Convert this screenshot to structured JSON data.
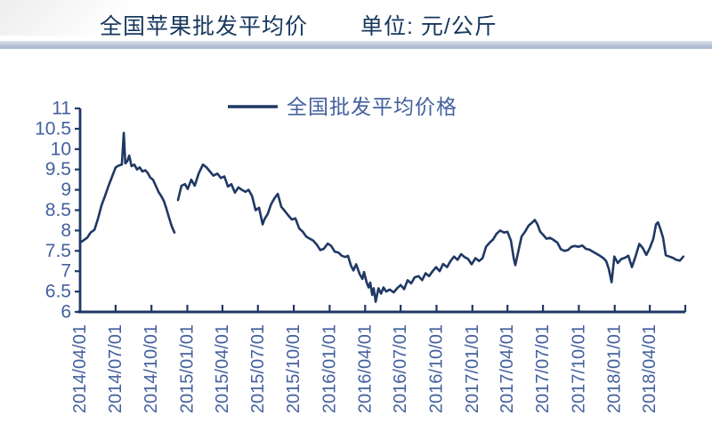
{
  "header": {
    "title": "全国苹果批发平均价",
    "unit": "单位: 元/公斤"
  },
  "chart_data": {
    "type": "line",
    "title": "全国苹果批发平均价",
    "unit_label": "单位: 元/公斤",
    "legend": [
      {
        "label": "全国批发平均价格",
        "position": "top-center"
      }
    ],
    "grid": false,
    "ylim": [
      6,
      11
    ],
    "y_ticks": [
      {
        "v": 6,
        "label": "6"
      },
      {
        "v": 6.5,
        "label": "6.5"
      },
      {
        "v": 7,
        "label": "7"
      },
      {
        "v": 7.5,
        "label": "7.5"
      },
      {
        "v": 8,
        "label": "8"
      },
      {
        "v": 8.5,
        "label": "8.5"
      },
      {
        "v": 9,
        "label": "9"
      },
      {
        "v": 9.5,
        "label": "9.5"
      },
      {
        "v": 10,
        "label": "10"
      },
      {
        "v": 10.5,
        "label": "10.5"
      },
      {
        "v": 11,
        "label": "11"
      }
    ],
    "x_domain": [
      "2014-04-01",
      "2018-07-01"
    ],
    "x_ticks": [
      "2014-07-01",
      "2014-10-01",
      "2015-01-01",
      "2015-04-01",
      "2015-07-01",
      "2015-10-01",
      "2016-01-01",
      "2016-04-01",
      "2016-07-01",
      "2016-10-01",
      "2017-01-01",
      "2017-04-01",
      "2017-07-01",
      "2017-10-01",
      "2018-01-01",
      "2018-04-01",
      "2018-07-01"
    ],
    "x_labels": [
      {
        "date": "2014-04-01",
        "label": "2014/04/01"
      },
      {
        "date": "2014-07-01",
        "label": "2014/07/01"
      },
      {
        "date": "2014-10-01",
        "label": "2014/10/01"
      },
      {
        "date": "2015-01-01",
        "label": "2015/01/01"
      },
      {
        "date": "2015-04-01",
        "label": "2015/04/01"
      },
      {
        "date": "2015-07-01",
        "label": "2015/07/01"
      },
      {
        "date": "2015-10-01",
        "label": "2015/10/01"
      },
      {
        "date": "2016-01-01",
        "label": "2016/01/01"
      },
      {
        "date": "2016-04-01",
        "label": "2016/04/01"
      },
      {
        "date": "2016-07-01",
        "label": "2016/07/01"
      },
      {
        "date": "2016-10-01",
        "label": "2016/10/01"
      },
      {
        "date": "2017-01-01",
        "label": "2017/01/01"
      },
      {
        "date": "2017-04-01",
        "label": "2017/04/01"
      },
      {
        "date": "2017-07-01",
        "label": "2017/07/01"
      },
      {
        "date": "2017-10-01",
        "label": "2017/10/01"
      },
      {
        "date": "2018-01-01",
        "label": "2018/01/01"
      },
      {
        "date": "2018-04-01",
        "label": "2018/04/01"
      }
    ],
    "colors": {
      "line": "#1F3864",
      "axis": "#1F3864",
      "tick_label": "#44619D",
      "title": "#17375E",
      "legend_text": "#44619D",
      "divider_top": "#dce2ec",
      "divider_bottom": "#aebbd2"
    },
    "series": [
      {
        "name": "全国批发平均价格",
        "color": "#1F3864",
        "segments": [
          [
            [
              "2014-04-01",
              7.7
            ],
            [
              "2014-04-10",
              7.76
            ],
            [
              "2014-04-19",
              7.82
            ],
            [
              "2014-04-28",
              7.95
            ],
            [
              "2014-05-08",
              8.02
            ],
            [
              "2014-05-17",
              8.3
            ],
            [
              "2014-05-26",
              8.62
            ],
            [
              "2014-06-04",
              8.85
            ],
            [
              "2014-06-13",
              9.1
            ],
            [
              "2014-06-22",
              9.32
            ],
            [
              "2014-07-01",
              9.55
            ],
            [
              "2014-07-10",
              9.6
            ],
            [
              "2014-07-17",
              9.62
            ],
            [
              "2014-07-22",
              10.4
            ],
            [
              "2014-07-26",
              9.65
            ],
            [
              "2014-07-31",
              9.7
            ],
            [
              "2014-08-05",
              9.84
            ],
            [
              "2014-08-11",
              9.58
            ],
            [
              "2014-08-18",
              9.62
            ],
            [
              "2014-08-25",
              9.5
            ],
            [
              "2014-09-01",
              9.55
            ],
            [
              "2014-09-08",
              9.45
            ],
            [
              "2014-09-15",
              9.48
            ],
            [
              "2014-09-21",
              9.42
            ],
            [
              "2014-09-28",
              9.3
            ],
            [
              "2014-10-05",
              9.25
            ],
            [
              "2014-10-12",
              9.1
            ],
            [
              "2014-10-19",
              8.95
            ],
            [
              "2014-10-26",
              8.85
            ],
            [
              "2014-11-02",
              8.72
            ],
            [
              "2014-11-08",
              8.55
            ],
            [
              "2014-11-15",
              8.32
            ],
            [
              "2014-11-22",
              8.1
            ],
            [
              "2014-11-29",
              7.95
            ]
          ],
          [
            [
              "2014-12-08",
              8.75
            ],
            [
              "2014-12-17",
              9.1
            ],
            [
              "2014-12-26",
              9.14
            ],
            [
              "2015-01-02",
              9.02
            ],
            [
              "2015-01-11",
              9.25
            ],
            [
              "2015-01-20",
              9.1
            ],
            [
              "2015-01-30",
              9.4
            ],
            [
              "2015-02-10",
              9.62
            ],
            [
              "2015-02-19",
              9.55
            ],
            [
              "2015-02-28",
              9.45
            ],
            [
              "2015-03-09",
              9.35
            ],
            [
              "2015-03-19",
              9.4
            ],
            [
              "2015-03-28",
              9.29
            ],
            [
              "2015-04-06",
              9.33
            ],
            [
              "2015-04-15",
              9.08
            ],
            [
              "2015-04-24",
              9.14
            ],
            [
              "2015-05-03",
              8.93
            ],
            [
              "2015-05-12",
              9.06
            ],
            [
              "2015-05-21",
              9.0
            ],
            [
              "2015-05-30",
              8.95
            ],
            [
              "2015-06-07",
              9.0
            ],
            [
              "2015-06-16",
              8.85
            ],
            [
              "2015-06-25",
              8.5
            ],
            [
              "2015-07-04",
              8.56
            ],
            [
              "2015-07-13",
              8.15
            ],
            [
              "2015-07-18",
              8.28
            ],
            [
              "2015-07-26",
              8.4
            ],
            [
              "2015-08-04",
              8.65
            ],
            [
              "2015-08-13",
              8.8
            ],
            [
              "2015-08-21",
              8.9
            ],
            [
              "2015-08-30",
              8.58
            ],
            [
              "2015-09-08",
              8.48
            ],
            [
              "2015-09-17",
              8.37
            ],
            [
              "2015-09-26",
              8.27
            ],
            [
              "2015-10-05",
              8.3
            ],
            [
              "2015-10-15",
              8.05
            ],
            [
              "2015-10-24",
              7.97
            ],
            [
              "2015-11-02",
              7.85
            ],
            [
              "2015-11-11",
              7.8
            ],
            [
              "2015-11-20",
              7.75
            ],
            [
              "2015-11-29",
              7.65
            ],
            [
              "2015-12-08",
              7.52
            ],
            [
              "2015-12-17",
              7.55
            ],
            [
              "2015-12-27",
              7.68
            ],
            [
              "2016-01-05",
              7.62
            ],
            [
              "2016-01-14",
              7.48
            ],
            [
              "2016-01-23",
              7.46
            ],
            [
              "2016-02-01",
              7.38
            ],
            [
              "2016-02-10",
              7.35
            ],
            [
              "2016-02-17",
              7.38
            ],
            [
              "2016-02-24",
              7.15
            ],
            [
              "2016-03-02",
              7.02
            ],
            [
              "2016-03-09",
              7.17
            ],
            [
              "2016-03-18",
              6.93
            ],
            [
              "2016-03-25",
              6.81
            ],
            [
              "2016-03-29",
              6.98
            ],
            [
              "2016-04-05",
              6.72
            ],
            [
              "2016-04-10",
              6.6
            ],
            [
              "2016-04-14",
              6.72
            ],
            [
              "2016-04-19",
              6.42
            ],
            [
              "2016-04-23",
              6.58
            ],
            [
              "2016-04-28",
              6.25
            ],
            [
              "2016-05-05",
              6.58
            ],
            [
              "2016-05-12",
              6.45
            ],
            [
              "2016-05-18",
              6.6
            ],
            [
              "2016-05-25",
              6.5
            ],
            [
              "2016-06-03",
              6.55
            ],
            [
              "2016-06-13",
              6.48
            ],
            [
              "2016-06-22",
              6.58
            ],
            [
              "2016-07-01",
              6.66
            ],
            [
              "2016-07-10",
              6.56
            ],
            [
              "2016-07-19",
              6.78
            ],
            [
              "2016-07-28",
              6.7
            ],
            [
              "2016-08-06",
              6.85
            ],
            [
              "2016-08-16",
              6.88
            ],
            [
              "2016-08-25",
              6.78
            ],
            [
              "2016-09-03",
              6.95
            ],
            [
              "2016-09-12",
              6.88
            ],
            [
              "2016-09-21",
              7.0
            ],
            [
              "2016-09-30",
              7.1
            ],
            [
              "2016-10-09",
              7.0
            ],
            [
              "2016-10-18",
              7.18
            ],
            [
              "2016-10-28",
              7.1
            ],
            [
              "2016-11-06",
              7.25
            ],
            [
              "2016-11-15",
              7.36
            ],
            [
              "2016-11-24",
              7.28
            ],
            [
              "2016-12-03",
              7.42
            ],
            [
              "2016-12-12",
              7.35
            ],
            [
              "2016-12-21",
              7.3
            ],
            [
              "2016-12-30",
              7.17
            ],
            [
              "2017-01-09",
              7.32
            ],
            [
              "2017-01-18",
              7.25
            ],
            [
              "2017-01-27",
              7.32
            ],
            [
              "2017-02-05",
              7.6
            ],
            [
              "2017-02-14",
              7.7
            ],
            [
              "2017-02-23",
              7.78
            ],
            [
              "2017-03-04",
              7.92
            ],
            [
              "2017-03-13",
              8.0
            ],
            [
              "2017-03-23",
              7.95
            ],
            [
              "2017-04-01",
              7.97
            ],
            [
              "2017-04-10",
              7.75
            ],
            [
              "2017-04-17",
              7.32
            ],
            [
              "2017-04-21",
              7.15
            ],
            [
              "2017-04-28",
              7.45
            ],
            [
              "2017-05-07",
              7.85
            ],
            [
              "2017-05-16",
              7.97
            ],
            [
              "2017-05-25",
              8.12
            ],
            [
              "2017-06-04",
              8.2
            ],
            [
              "2017-06-10",
              8.26
            ],
            [
              "2017-06-17",
              8.15
            ],
            [
              "2017-06-24",
              7.97
            ],
            [
              "2017-07-01",
              7.9
            ],
            [
              "2017-07-10",
              7.8
            ],
            [
              "2017-07-19",
              7.82
            ],
            [
              "2017-07-28",
              7.77
            ],
            [
              "2017-08-07",
              7.7
            ],
            [
              "2017-08-16",
              7.54
            ],
            [
              "2017-08-25",
              7.5
            ],
            [
              "2017-09-03",
              7.52
            ],
            [
              "2017-09-12",
              7.6
            ],
            [
              "2017-09-21",
              7.62
            ],
            [
              "2017-09-30",
              7.6
            ],
            [
              "2017-10-10",
              7.63
            ],
            [
              "2017-10-19",
              7.55
            ],
            [
              "2017-10-28",
              7.53
            ],
            [
              "2017-11-06",
              7.48
            ],
            [
              "2017-11-15",
              7.43
            ],
            [
              "2017-11-24",
              7.38
            ],
            [
              "2017-12-03",
              7.32
            ],
            [
              "2017-12-10",
              7.25
            ],
            [
              "2017-12-17",
              7.05
            ],
            [
              "2017-12-24",
              6.73
            ],
            [
              "2017-12-31",
              7.36
            ],
            [
              "2018-01-09",
              7.2
            ],
            [
              "2018-01-18",
              7.3
            ],
            [
              "2018-01-27",
              7.33
            ],
            [
              "2018-02-05",
              7.38
            ],
            [
              "2018-02-14",
              7.1
            ],
            [
              "2018-02-23",
              7.35
            ],
            [
              "2018-03-05",
              7.67
            ],
            [
              "2018-03-14",
              7.57
            ],
            [
              "2018-03-23",
              7.4
            ],
            [
              "2018-04-01",
              7.57
            ],
            [
              "2018-04-10",
              7.8
            ],
            [
              "2018-04-17",
              8.15
            ],
            [
              "2018-04-22",
              8.2
            ],
            [
              "2018-04-28",
              8.04
            ],
            [
              "2018-05-05",
              7.82
            ],
            [
              "2018-05-12",
              7.39
            ],
            [
              "2018-05-21",
              7.36
            ],
            [
              "2018-05-30",
              7.33
            ],
            [
              "2018-06-08",
              7.28
            ],
            [
              "2018-06-17",
              7.26
            ],
            [
              "2018-06-26",
              7.36
            ]
          ]
        ]
      }
    ]
  }
}
